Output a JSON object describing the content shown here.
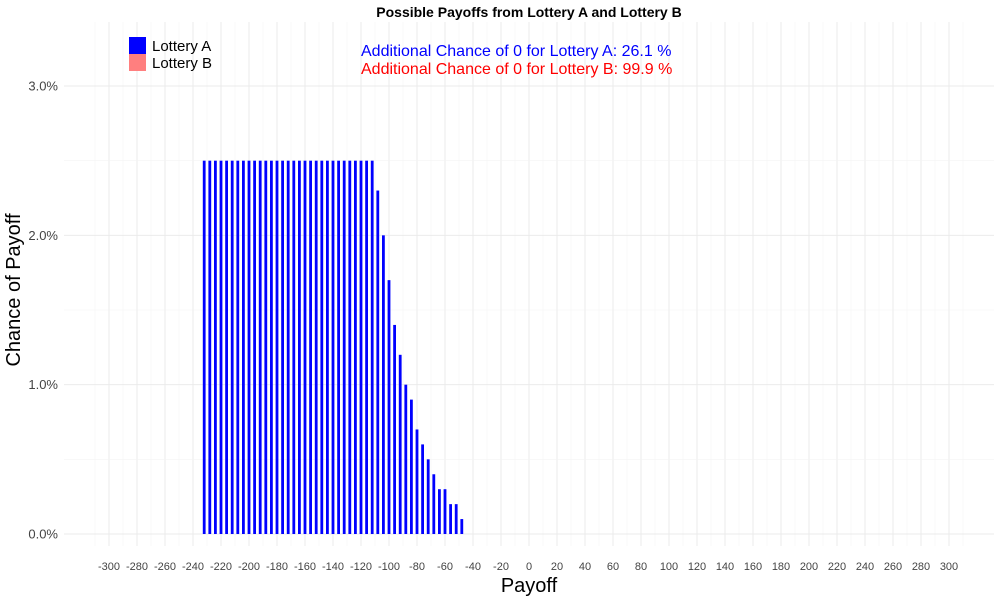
{
  "chart_data": {
    "type": "bar",
    "title": "Possible Payoffs from Lottery A and Lottery B",
    "xlabel": "Payoff",
    "ylabel": "Chance of Payoff",
    "xlim": [
      -310,
      310
    ],
    "ylim": [
      0,
      3.3
    ],
    "x_ticks": [
      -300,
      -280,
      -260,
      -240,
      -220,
      -200,
      -180,
      -160,
      -140,
      -120,
      -100,
      -80,
      -60,
      -40,
      -20,
      0,
      20,
      40,
      60,
      80,
      100,
      120,
      140,
      160,
      180,
      200,
      220,
      240,
      260,
      280,
      300
    ],
    "x_tick_labels": [
      "-300",
      "-280",
      "-260",
      "-240",
      "-220",
      "-200",
      "-180",
      "-160",
      "-140",
      "-120",
      "-100",
      "-80",
      "-60",
      "-40",
      "-20",
      "0",
      "20",
      "40",
      "60",
      "80",
      "100",
      "120",
      "140",
      "160",
      "180",
      "200",
      "220",
      "240",
      "260",
      "280",
      "300"
    ],
    "y_ticks": [
      0,
      1,
      2,
      3
    ],
    "y_tick_labels": [
      "0.0%",
      "1.0%",
      "2.0%",
      "3.0%"
    ],
    "grid": true,
    "legend_position": "top-left",
    "series": [
      {
        "name": "Lottery A",
        "color": "#0000ff",
        "x": [
          -232,
          -228,
          -224,
          -220,
          -216,
          -212,
          -208,
          -204,
          -200,
          -196,
          -192,
          -188,
          -184,
          -180,
          -176,
          -172,
          -168,
          -164,
          -160,
          -156,
          -152,
          -148,
          -144,
          -140,
          -136,
          -132,
          -128,
          -124,
          -120,
          -116,
          -112,
          -108,
          -104,
          -100,
          -96,
          -92,
          -88,
          -84,
          -80,
          -76,
          -72,
          -68,
          -64,
          -60,
          -56,
          -52,
          -48,
          -44,
          -40,
          -36
        ],
        "values": [
          2.5,
          2.5,
          2.5,
          2.5,
          2.5,
          2.5,
          2.5,
          2.5,
          2.5,
          2.5,
          2.5,
          2.5,
          2.5,
          2.5,
          2.5,
          2.5,
          2.5,
          2.5,
          2.5,
          2.5,
          2.5,
          2.5,
          2.5,
          2.5,
          2.5,
          2.5,
          2.5,
          2.5,
          2.5,
          2.5,
          2.5,
          2.3,
          2.0,
          1.7,
          1.4,
          1.2,
          1.0,
          0.9,
          0.7,
          0.6,
          0.5,
          0.4,
          0.3,
          0.3,
          0.2,
          0.2,
          0.1,
          0,
          0,
          0
        ]
      },
      {
        "name": "Lottery B",
        "color": "#ff7f7f",
        "x": [],
        "values": []
      }
    ],
    "annotations": [
      {
        "text": "Additional Chance of 0 for Lottery A:  26.1 %",
        "color": "#0000ff"
      },
      {
        "text": "Additional Chance of 0 for Lottery B:  99.9 %",
        "color": "#ff0000"
      }
    ]
  }
}
